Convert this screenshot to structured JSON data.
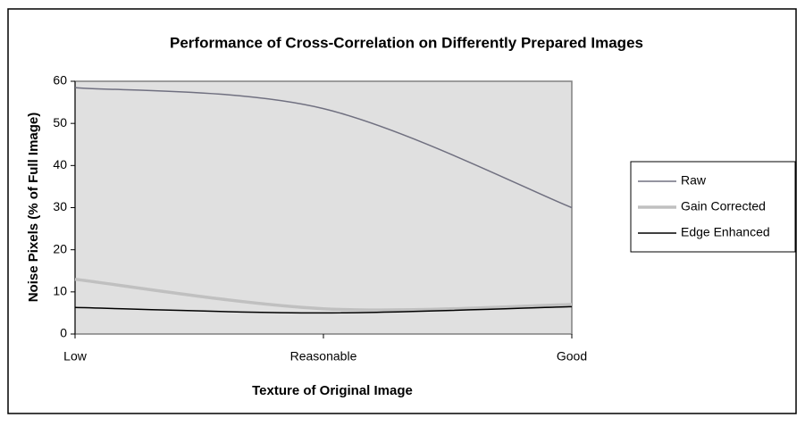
{
  "chart_data": {
    "type": "line",
    "title": "Performance of Cross-Correlation on Differently Prepared Images",
    "x_label": "Texture of Original Image",
    "y_label": "Noise Pixels (% of Full Image)",
    "categories": [
      "Low",
      "Reasonable",
      "Good"
    ],
    "series": [
      {
        "name": "Raw",
        "color": "#707080",
        "values": [
          58.5,
          53.5,
          30
        ]
      },
      {
        "name": "Gain Corrected",
        "color": "#c0c0c0",
        "values": [
          13,
          6,
          7
        ]
      },
      {
        "name": "Edge Enhanced",
        "color": "#000000",
        "values": [
          6.3,
          5,
          6.5
        ]
      }
    ],
    "ylim": [
      0,
      60
    ],
    "yticks": [
      0,
      10,
      20,
      30,
      40,
      50,
      60
    ],
    "smooth": true,
    "plot_background": "#e0e0e0",
    "legend": "right"
  }
}
